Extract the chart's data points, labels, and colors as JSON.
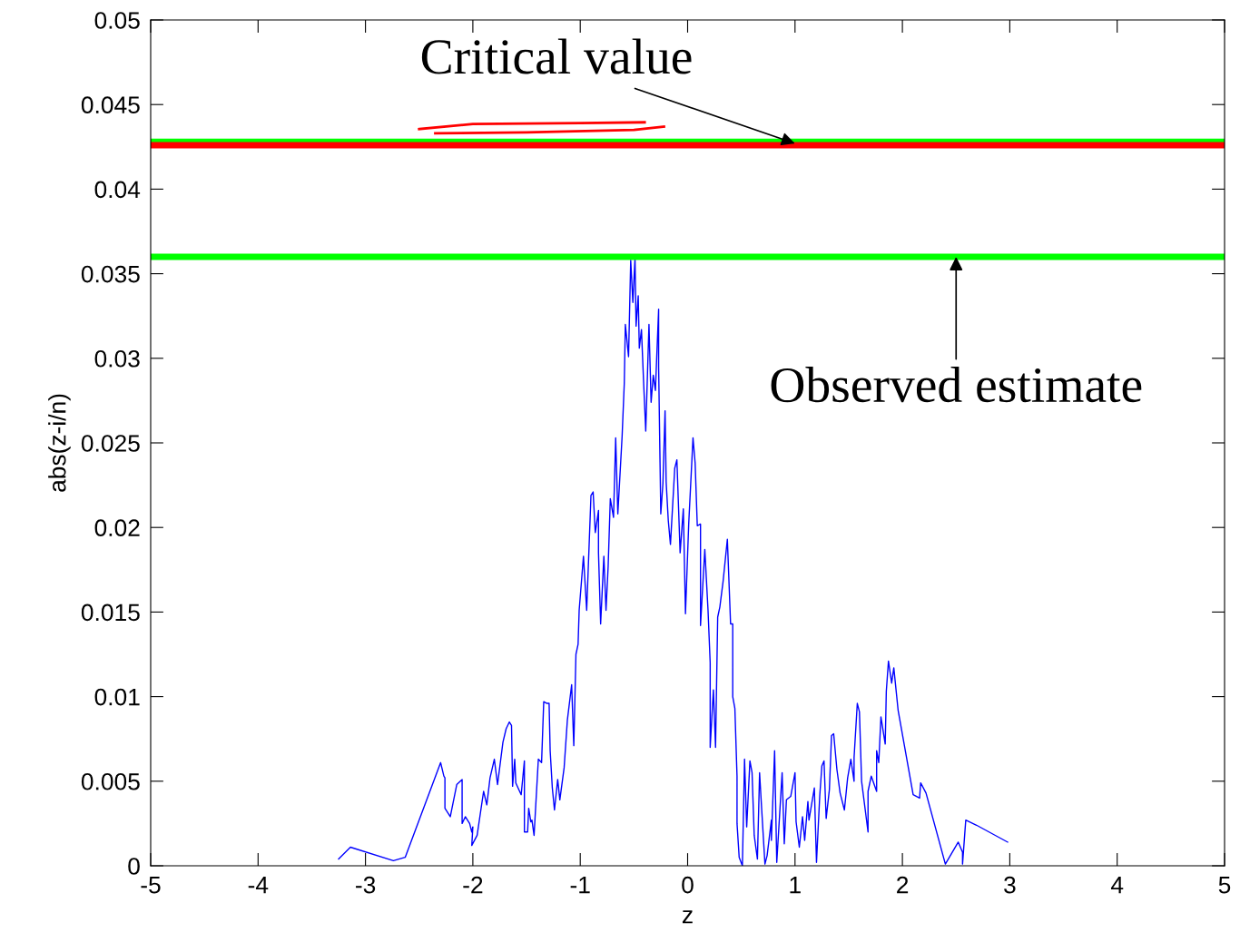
{
  "chart_data": {
    "type": "line",
    "xlabel": "z",
    "ylabel": "abs(z-i/n)",
    "xlim": [
      -5,
      5
    ],
    "ylim": [
      0,
      0.05
    ],
    "xticks": [
      -5,
      -4,
      -3,
      -2,
      -1,
      0,
      1,
      2,
      3,
      4,
      5
    ],
    "yticks": [
      0,
      0.005,
      0.01,
      0.015,
      0.02,
      0.025,
      0.03,
      0.035,
      0.04,
      0.045,
      0.05
    ],
    "grid": false,
    "legend": false,
    "marker": "none",
    "line_style": "solid",
    "series": [
      {
        "color": "#0000ff",
        "x": [
          -3.25,
          -3.14,
          -2.74,
          -2.63,
          -2.3,
          -2.27,
          -2.26,
          -2.26,
          -2.21,
          -2.15,
          -2.1,
          -2.1,
          -2.07,
          -2.03,
          -2.01,
          -2.0,
          -2.01,
          -1.96,
          -1.9,
          -1.87,
          -1.84,
          -1.8,
          -1.77,
          -1.72,
          -1.69,
          -1.66,
          -1.64,
          -1.63,
          -1.61,
          -1.6,
          -1.55,
          -1.52,
          -1.52,
          -1.49,
          -1.48,
          -1.46,
          -1.45,
          -1.43,
          -1.39,
          -1.36,
          -1.34,
          -1.31,
          -1.29,
          -1.28,
          -1.26,
          -1.24,
          -1.21,
          -1.19,
          -1.15,
          -1.12,
          -1.08,
          -1.06,
          -1.04,
          -1.02,
          -1.01,
          -0.99,
          -0.97,
          -0.94,
          -0.9,
          -0.88,
          -0.86,
          -0.83,
          -0.83,
          -0.81,
          -0.78,
          -0.76,
          -0.74,
          -0.72,
          -0.69,
          -0.67,
          -0.65,
          -0.61,
          -0.59,
          -0.58,
          -0.55,
          -0.53,
          -0.51,
          -0.49,
          -0.48,
          -0.46,
          -0.45,
          -0.43,
          -0.41,
          -0.39,
          -0.36,
          -0.34,
          -0.32,
          -0.3,
          -0.27,
          -0.27,
          -0.25,
          -0.23,
          -0.21,
          -0.2,
          -0.18,
          -0.16,
          -0.12,
          -0.1,
          -0.07,
          -0.04,
          -0.02,
          0.01,
          0.05,
          0.07,
          0.09,
          0.12,
          0.12,
          0.16,
          0.19,
          0.21,
          0.21,
          0.24,
          0.26,
          0.28,
          0.3,
          0.33,
          0.37,
          0.4,
          0.42,
          0.42,
          0.44,
          0.46,
          0.46,
          0.48,
          0.51,
          0.53,
          0.55,
          0.58,
          0.6,
          0.62,
          0.65,
          0.67,
          0.69,
          0.72,
          0.74,
          0.78,
          0.78,
          0.81,
          0.83,
          0.88,
          0.9,
          0.92,
          0.96,
          1.0,
          1.01,
          1.04,
          1.07,
          1.09,
          1.12,
          1.13,
          1.18,
          1.2,
          1.23,
          1.25,
          1.27,
          1.29,
          1.32,
          1.34,
          1.36,
          1.39,
          1.42,
          1.46,
          1.49,
          1.52,
          1.55,
          1.55,
          1.58,
          1.6,
          1.62,
          1.68,
          1.68,
          1.71,
          1.76,
          1.76,
          1.78,
          1.8,
          1.84,
          1.85,
          1.87,
          1.9,
          1.92,
          1.96,
          2.1,
          2.16,
          2.17,
          2.22,
          2.4,
          2.52,
          2.56,
          2.56,
          2.59,
          2.69,
          2.98
        ],
        "values": [
          0.0004,
          0.0011,
          0.0003,
          0.0005,
          0.0061,
          0.0053,
          0.0052,
          0.0034,
          0.0029,
          0.0048,
          0.0051,
          0.0025,
          0.0029,
          0.0025,
          0.002,
          0.0023,
          0.0012,
          0.0018,
          0.0044,
          0.0036,
          0.0052,
          0.0063,
          0.0048,
          0.0073,
          0.0081,
          0.0085,
          0.0083,
          0.0047,
          0.0063,
          0.0049,
          0.0042,
          0.0062,
          0.002,
          0.002,
          0.0034,
          0.0026,
          0.0027,
          0.0018,
          0.0063,
          0.0061,
          0.0097,
          0.0096,
          0.0096,
          0.0068,
          0.0046,
          0.0033,
          0.0051,
          0.0039,
          0.0058,
          0.0086,
          0.0107,
          0.0071,
          0.0125,
          0.0131,
          0.0151,
          0.0167,
          0.0183,
          0.0151,
          0.0219,
          0.0221,
          0.0197,
          0.021,
          0.0185,
          0.0143,
          0.0183,
          0.0151,
          0.0177,
          0.0217,
          0.0206,
          0.0253,
          0.0208,
          0.0254,
          0.0285,
          0.032,
          0.0301,
          0.0358,
          0.0333,
          0.0359,
          0.0319,
          0.0337,
          0.0306,
          0.0317,
          0.0286,
          0.0257,
          0.032,
          0.0274,
          0.029,
          0.0281,
          0.0329,
          0.0295,
          0.0208,
          0.0226,
          0.0269,
          0.0227,
          0.0204,
          0.019,
          0.0235,
          0.024,
          0.0185,
          0.0211,
          0.0149,
          0.0202,
          0.0253,
          0.0238,
          0.0201,
          0.0202,
          0.0142,
          0.0187,
          0.0151,
          0.012,
          0.007,
          0.0104,
          0.007,
          0.0147,
          0.0153,
          0.0168,
          0.0193,
          0.0143,
          0.0143,
          0.01,
          0.0093,
          0.0053,
          0.0025,
          0.0005,
          0.0,
          0.0063,
          0.0023,
          0.0062,
          0.0055,
          0.0018,
          0.0004,
          0.0055,
          0.0033,
          0.0001,
          0.0006,
          0.0027,
          0.0015,
          0.0068,
          0.0002,
          0.0055,
          0.0013,
          0.0039,
          0.0041,
          0.0055,
          0.0026,
          0.0011,
          0.0029,
          0.0015,
          0.0038,
          0.0027,
          0.0046,
          0.0002,
          0.0041,
          0.0059,
          0.0062,
          0.0028,
          0.0045,
          0.0077,
          0.0078,
          0.0057,
          0.0043,
          0.0033,
          0.0052,
          0.0063,
          0.005,
          0.0064,
          0.0096,
          0.0091,
          0.005,
          0.002,
          0.0044,
          0.0053,
          0.0044,
          0.0068,
          0.0061,
          0.0088,
          0.0072,
          0.0103,
          0.0121,
          0.0108,
          0.0117,
          0.0092,
          0.0042,
          0.004,
          0.0049,
          0.0043,
          0.0001,
          0.0014,
          0.0008,
          0.0001,
          0.0027,
          0.0024,
          0.0014
        ]
      }
    ],
    "ref_lines": [
      {
        "axis": "y",
        "value": 0.0428,
        "color": "#00ff00"
      },
      {
        "axis": "y",
        "value": 0.0426,
        "color": "#ff0000"
      },
      {
        "axis": "y",
        "value": 0.036,
        "color": "#00ff00"
      }
    ],
    "annotations": [
      {
        "text": "Critical value",
        "x": 1.0,
        "y": 0.0427
      },
      {
        "text": "Observed estimate",
        "x": 2.5,
        "y": 0.036
      }
    ]
  }
}
